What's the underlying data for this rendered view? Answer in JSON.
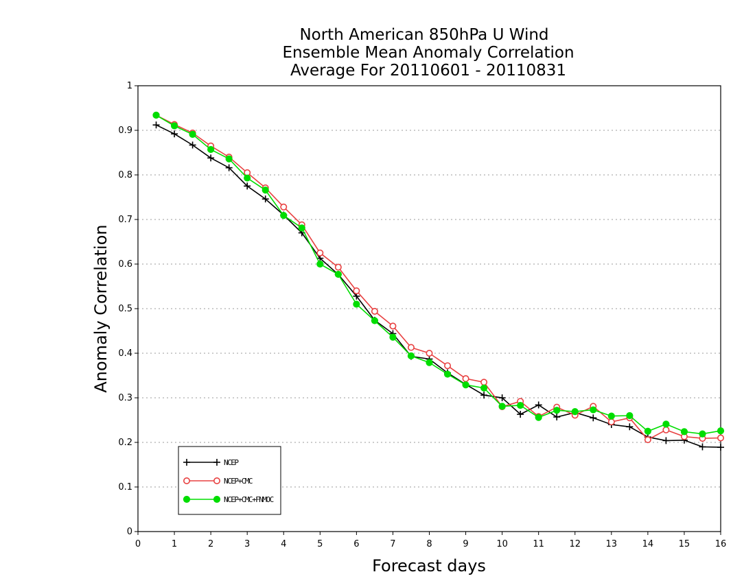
{
  "chart_data": {
    "type": "line",
    "title_lines": [
      "North American 850hPa U Wind",
      "Ensemble Mean Anomaly Correlation",
      "Average For 20110601 - 20110831"
    ],
    "xlabel": "Forecast days",
    "ylabel": "Anomaly Correlation",
    "xlim": [
      0,
      16
    ],
    "ylim": [
      0,
      1
    ],
    "x_ticks": [
      "0",
      "1",
      "2",
      "3",
      "4",
      "5",
      "6",
      "7",
      "8",
      "9",
      "10",
      "11",
      "12",
      "13",
      "14",
      "15",
      "16"
    ],
    "y_ticks": [
      "0",
      "0.1",
      "0.2",
      "0.3",
      "0.4",
      "0.5",
      "0.6",
      "0.7",
      "0.8",
      "0.9",
      "1"
    ],
    "grid": "horizontal dotted",
    "legend_position": "bottom-left",
    "x": [
      0.5,
      1,
      1.5,
      2,
      2.5,
      3,
      3.5,
      4,
      4.5,
      5,
      5.5,
      6,
      6.5,
      7,
      7.5,
      8,
      8.5,
      9,
      9.5,
      10,
      10.5,
      11,
      11.5,
      12,
      12.5,
      13,
      13.5,
      14,
      14.5,
      15,
      15.5,
      16
    ],
    "series": [
      {
        "name": "NCEP",
        "color": "#000000",
        "marker": "plus",
        "values": [
          0.912,
          0.892,
          0.867,
          0.838,
          0.816,
          0.775,
          0.746,
          0.71,
          0.67,
          0.613,
          0.577,
          0.528,
          0.474,
          0.444,
          0.393,
          0.387,
          0.356,
          0.33,
          0.306,
          0.3,
          0.263,
          0.284,
          0.257,
          0.267,
          0.255,
          0.24,
          0.235,
          0.212,
          0.204,
          0.205,
          0.19,
          0.189
        ]
      },
      {
        "name": "NCEP+CMC",
        "color": "#e84040",
        "marker": "open-circle",
        "values": [
          0.934,
          0.913,
          0.894,
          0.865,
          0.84,
          0.805,
          0.771,
          0.728,
          0.688,
          0.625,
          0.593,
          0.54,
          0.494,
          0.461,
          0.413,
          0.4,
          0.372,
          0.343,
          0.335,
          0.28,
          0.292,
          0.258,
          0.279,
          0.261,
          0.281,
          0.246,
          0.255,
          0.206,
          0.228,
          0.213,
          0.209,
          0.21
        ]
      },
      {
        "name": "NCEP+CMC+FNMOC",
        "color": "#00dd00",
        "marker": "filled-circle",
        "values": [
          0.934,
          0.91,
          0.891,
          0.857,
          0.836,
          0.793,
          0.766,
          0.709,
          0.681,
          0.6,
          0.577,
          0.51,
          0.473,
          0.436,
          0.394,
          0.379,
          0.353,
          0.329,
          0.322,
          0.281,
          0.283,
          0.256,
          0.272,
          0.269,
          0.273,
          0.259,
          0.26,
          0.225,
          0.241,
          0.224,
          0.219,
          0.226
        ]
      }
    ]
  }
}
